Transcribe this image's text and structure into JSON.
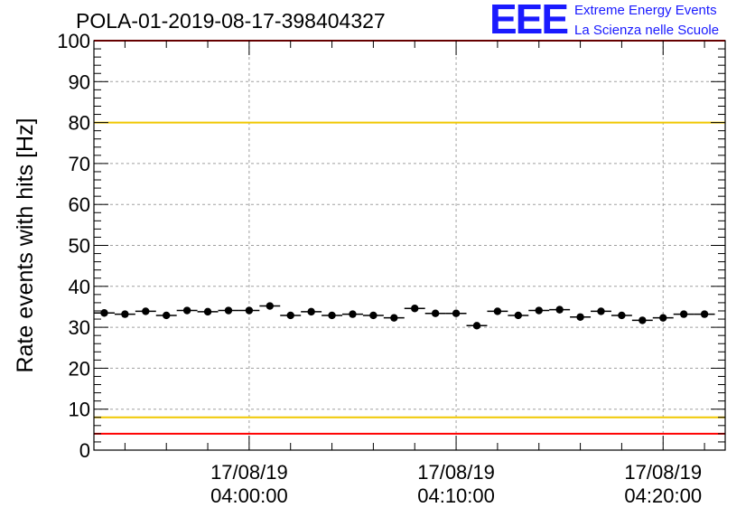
{
  "chart_data": {
    "type": "scatter",
    "title": "POLA-01-2019-08-17-398404327",
    "ylabel": "Rate events with hits [Hz]",
    "xlabel": "",
    "ylim": [
      0,
      100
    ],
    "yticks": [
      0,
      10,
      20,
      30,
      40,
      50,
      60,
      70,
      80,
      90,
      100
    ],
    "xticks": [
      {
        "date": "17/08/19",
        "time": "04:00:00",
        "minute": 0
      },
      {
        "date": "17/08/19",
        "time": "04:10:00",
        "minute": 10
      },
      {
        "date": "17/08/19",
        "time": "04:20:00",
        "minute": 20
      }
    ],
    "xlim_minutes": [
      -7.5,
      23.0
    ],
    "bin_width_minutes": 1,
    "grid": true,
    "series": [
      {
        "name": "rate",
        "x_minutes": [
          -7,
          -6,
          -5,
          -4,
          -3,
          -2,
          -1,
          0,
          1,
          2,
          3,
          4,
          5,
          6,
          7,
          8,
          9,
          10,
          11,
          12,
          13,
          14,
          15,
          16,
          17,
          18,
          19,
          20,
          21,
          22
        ],
        "values": [
          33.5,
          33.2,
          33.9,
          32.9,
          34.1,
          33.8,
          34.1,
          34.1,
          35.2,
          32.9,
          33.8,
          32.9,
          33.2,
          32.9,
          32.3,
          34.6,
          33.4,
          33.4,
          30.4,
          33.9,
          32.9,
          34.1,
          34.3,
          32.5,
          33.9,
          32.9,
          31.7,
          32.3,
          33.2,
          33.2
        ],
        "color": "#000000"
      }
    ],
    "reference_lines": [
      {
        "value": 80,
        "color": "#f0c800"
      },
      {
        "value": 8,
        "color": "#f0c800"
      },
      {
        "value": 100,
        "color": "#ff0000"
      },
      {
        "value": 4,
        "color": "#ff0000"
      }
    ]
  },
  "logo": {
    "mark": "EEE",
    "line1": "Extreme Energy Events",
    "line2": "La Scienza nelle Scuole",
    "color": "#1a1aff"
  }
}
